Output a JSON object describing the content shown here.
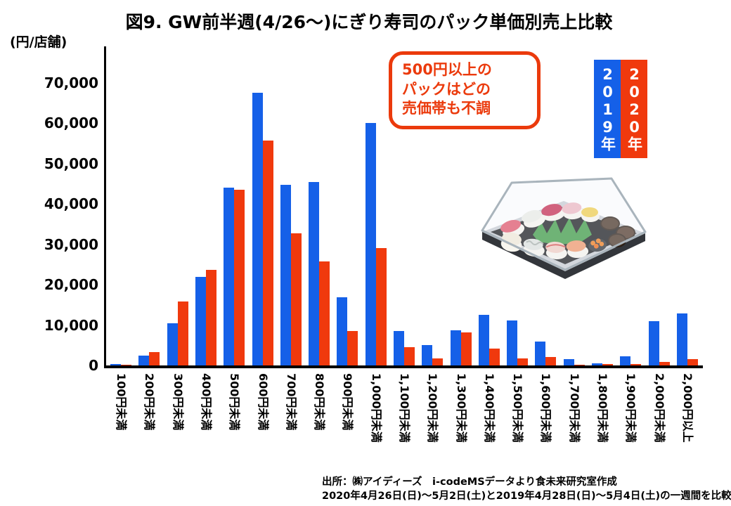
{
  "title": "図9. GW前半週(4/26～)にぎり寿司のパック単価別売上比較",
  "y_axis_unit": "(円/店舗)",
  "annotation": {
    "lines": [
      "500円以上の",
      "パックはどの",
      "売価帯も不調"
    ],
    "color": "#eb3a0c"
  },
  "legend": {
    "items": [
      {
        "label": "2019年",
        "color": "#1560e8",
        "text_color": "#ffffff"
      },
      {
        "label": "2020年",
        "color": "#f0390d",
        "text_color": "#ffffff"
      }
    ]
  },
  "footer": {
    "line1": "出所：㈱アイディーズ　i-codeMSデータより食未来研究室作成",
    "line2": "2020年4月26日(日)～5月2日(土)と2019年4月28日(日)～5月4日(土)の一週間を比較"
  },
  "illustration": {
    "name": "sushi-pack-illustration"
  },
  "chart_data": {
    "type": "bar",
    "title": "図9. GW前半週(4/26～)にぎり寿司のパック単価別売上比較",
    "categories": [
      "100円未満",
      "200円未満",
      "300円未満",
      "400円未満",
      "500円未満",
      "600円未満",
      "700円未満",
      "800円未満",
      "900円未満",
      "1,000円未満",
      "1,100円未満",
      "1,200円未満",
      "1,300円未満",
      "1,400円未満",
      "1,500円未満",
      "1,600円未満",
      "1,700円未満",
      "1,800円未満",
      "1,900円未満",
      "2,000円未満",
      "2,000円以上"
    ],
    "series": [
      {
        "name": "2019年",
        "color": "#1560e8",
        "values": [
          300,
          2400,
          10500,
          22000,
          44000,
          67500,
          44800,
          45400,
          16900,
          60000,
          8500,
          5000,
          8700,
          12500,
          11200,
          6000,
          1500,
          500,
          2200,
          10900,
          12900
        ]
      },
      {
        "name": "2020年",
        "color": "#f0390d",
        "values": [
          100,
          3300,
          15900,
          23700,
          43500,
          55800,
          32800,
          25700,
          8600,
          29000,
          4600,
          1800,
          8100,
          4100,
          1800,
          2100,
          100,
          300,
          400,
          900,
          1500
        ]
      }
    ],
    "xlabel": "",
    "ylabel": "(円/店舗)",
    "ylim": [
      0,
      70000
    ],
    "ytick_interval": 10000,
    "grid": false,
    "legend_position": "top-right"
  }
}
